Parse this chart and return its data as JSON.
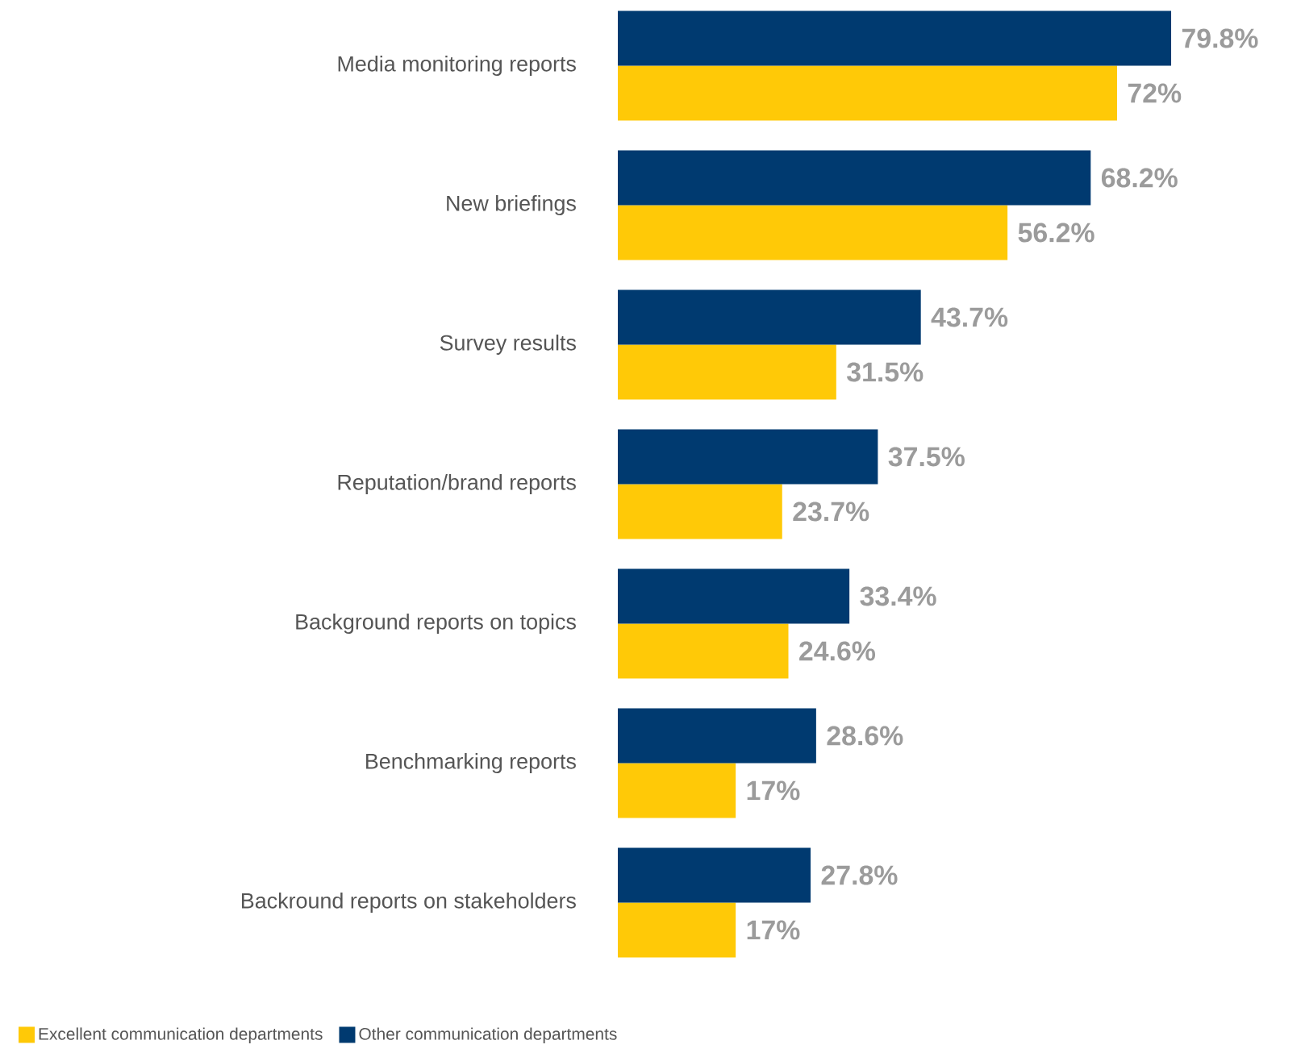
{
  "chart_data": {
    "type": "bar",
    "orientation": "horizontal",
    "categories": [
      "Media monitoring reports",
      "New briefings",
      "Survey results",
      "Reputation/brand reports",
      "Background reports on topics",
      "Benchmarking reports",
      "Backround reports on stakeholders"
    ],
    "series": [
      {
        "name": "Excellent communication departments",
        "color": "#ffc907",
        "values": [
          72,
          56.2,
          31.5,
          23.7,
          24.6,
          17,
          17
        ],
        "value_labels": [
          "72%",
          "56.2%",
          "31.5%",
          "23.7%",
          "24.6%",
          "17%",
          "17%"
        ]
      },
      {
        "name": "Other communication departments",
        "color": "#003a70",
        "values": [
          79.8,
          68.2,
          43.7,
          37.5,
          33.4,
          28.6,
          27.8
        ],
        "value_labels": [
          "79.8%",
          "68.2%",
          "43.7%",
          "37.5%",
          "33.4%",
          "28.6%",
          "27.8%"
        ]
      }
    ],
    "tick_labels": "y",
    "legend": "bottom"
  }
}
